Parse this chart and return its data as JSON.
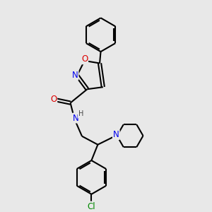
{
  "background_color": "#e8e8e8",
  "bond_color": "#000000",
  "atom_colors": {
    "N": "#0000ee",
    "O": "#dd0000",
    "Cl": "#008800",
    "H": "#444444",
    "C": "#000000"
  },
  "fig_width": 3.0,
  "fig_height": 3.0,
  "dpi": 100
}
